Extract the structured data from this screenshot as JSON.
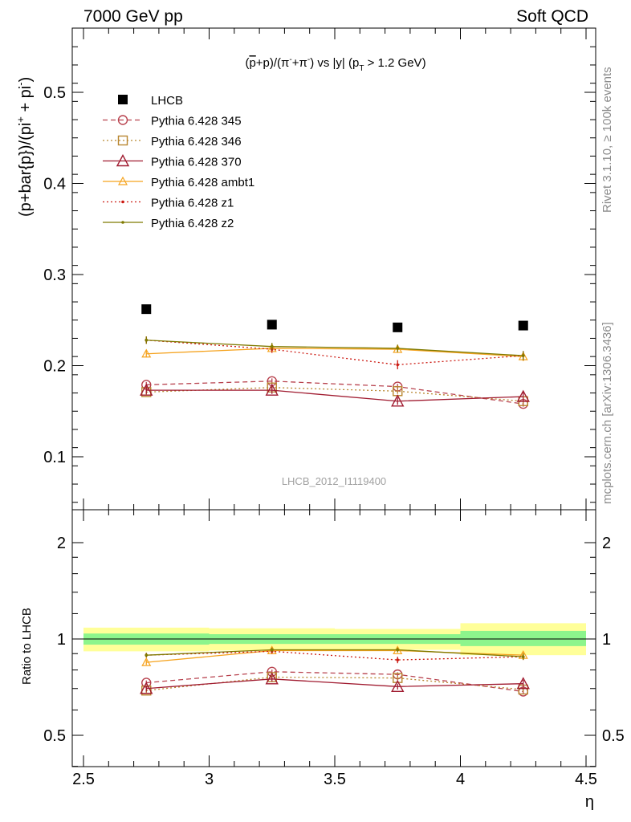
{
  "header": {
    "left": "7000 GeV pp",
    "right": "Soft QCD"
  },
  "side_text": {
    "rivet": "Rivet 3.1.10, ≥ 100k events",
    "mcplots": "mcplots.cern.ch [arXiv:1306.3436]"
  },
  "watermark": "LHCB_2012_I1119400",
  "main_title": {
    "prefix": "(",
    "p_bar": "p",
    "middle": "+p)/(π",
    "sup1": "-",
    "middle2": "+π",
    "sup2": "-",
    "tail": ") vs |y| (p",
    "sub": "T",
    "end": " > 1.2 GeV)"
  },
  "ylabel_top": {
    "base": "(p+bar{p})/(pi",
    "sup1": "+",
    "mid": " + pi",
    "sup2": "-",
    "end": ")"
  },
  "ylabel_bottom": "Ratio to LHCB",
  "xlabel": "η",
  "colors": {
    "data": "#000000",
    "p345": "#b8424e",
    "p346": "#b8862f",
    "p370": "#a01b30",
    "ambt1": "#f5a31f",
    "z1": "#cc1a12",
    "z2": "#7f7a00",
    "band_inner": "#8cf58c",
    "band_outer": "#ffff99"
  },
  "chart_data": [
    {
      "type": "scatter",
      "panel": "main",
      "xlim": [
        2.5,
        4.5
      ],
      "ylim": [
        0.045,
        0.57
      ],
      "x_ticks": [
        2.5,
        3,
        3.5,
        4,
        4.5
      ],
      "x_tick_labels": [
        "2.5",
        "3",
        "3.5",
        "4",
        "4.5"
      ],
      "y_ticks": [
        0.1,
        0.2,
        0.3,
        0.4,
        0.5
      ],
      "y_tick_labels": [
        "0.1",
        "0.2",
        "0.3",
        "0.4",
        "0.5"
      ],
      "x": [
        2.75,
        3.25,
        3.75,
        4.25
      ],
      "legend_position": "top-left",
      "series": [
        {
          "key": "lhcb",
          "name": "LHCB",
          "marker": "square",
          "line": "none",
          "color_key": "data",
          "values": [
            0.262,
            0.245,
            0.242,
            0.244
          ],
          "errors": [
            0.003,
            0.003,
            0.003,
            0.003
          ]
        },
        {
          "key": "p345",
          "name": "Pythia 6.428 345",
          "marker": "circle",
          "line": "dashed",
          "color_key": "p345",
          "values": [
            0.179,
            0.183,
            0.177,
            0.158
          ],
          "errors": [
            0.003,
            0.003,
            0.003,
            0.003
          ]
        },
        {
          "key": "p346",
          "name": "Pythia 6.428 346",
          "marker": "square-open",
          "line": "dotted",
          "color_key": "p346",
          "values": [
            0.171,
            0.176,
            0.172,
            0.161
          ],
          "errors": [
            0.003,
            0.003,
            0.003,
            0.003
          ]
        },
        {
          "key": "p370",
          "name": "Pythia 6.428 370",
          "marker": "triangle",
          "line": "solid",
          "color_key": "p370",
          "values": [
            0.173,
            0.173,
            0.161,
            0.166
          ],
          "errors": [
            0.004,
            0.004,
            0.004,
            0.005
          ]
        },
        {
          "key": "ambt1",
          "name": "Pythia 6.428 ambt1",
          "marker": "triangle-small",
          "line": "solid",
          "color_key": "ambt1",
          "values": [
            0.213,
            0.219,
            0.218,
            0.21
          ],
          "errors": [
            0.004,
            0.004,
            0.004,
            0.005
          ]
        },
        {
          "key": "z1",
          "name": "Pythia 6.428 z1",
          "marker": "dot",
          "line": "dotted",
          "color_key": "z1",
          "values": [
            0.228,
            0.218,
            0.201,
            0.211
          ],
          "errors": [
            0.004,
            0.004,
            0.005,
            0.005
          ]
        },
        {
          "key": "z2",
          "name": "Pythia 6.428 z2",
          "marker": "dot",
          "line": "solid",
          "color_key": "z2",
          "values": [
            0.228,
            0.221,
            0.219,
            0.211
          ],
          "errors": [
            0.004,
            0.004,
            0.004,
            0.005
          ]
        }
      ]
    },
    {
      "type": "scatter",
      "panel": "ratio",
      "xlim": [
        2.5,
        4.5
      ],
      "ylim": [
        0.35,
        2.3
      ],
      "x_ticks": [
        2.5,
        3,
        3.5,
        4,
        4.5
      ],
      "x_tick_labels": [
        "2.5",
        "3",
        "3.5",
        "4",
        "4.5"
      ],
      "y_ticks": [
        0.5,
        1,
        2
      ],
      "y_tick_labels": [
        "0.5",
        "1",
        "2"
      ],
      "bands": [
        {
          "x0": 2.5,
          "x1": 3.0,
          "outer": [
            0.915,
            1.085
          ],
          "inner": [
            0.96,
            1.04
          ]
        },
        {
          "x0": 3.0,
          "x1": 3.5,
          "outer": [
            0.92,
            1.08
          ],
          "inner": [
            0.965,
            1.035
          ]
        },
        {
          "x0": 3.5,
          "x1": 4.0,
          "outer": [
            0.925,
            1.075
          ],
          "inner": [
            0.965,
            1.035
          ]
        },
        {
          "x0": 4.0,
          "x1": 4.5,
          "outer": [
            0.89,
            1.12
          ],
          "inner": [
            0.95,
            1.06
          ]
        }
      ],
      "x": [
        2.75,
        3.25,
        3.75,
        4.25
      ],
      "series": [
        {
          "key": "p345",
          "values": [
            0.73,
            0.79,
            0.775,
            0.685
          ],
          "errors": [
            0.012,
            0.012,
            0.012,
            0.012
          ]
        },
        {
          "key": "p346",
          "values": [
            0.69,
            0.76,
            0.755,
            0.695
          ],
          "errors": [
            0.012,
            0.012,
            0.012,
            0.012
          ]
        },
        {
          "key": "p370",
          "values": [
            0.7,
            0.75,
            0.71,
            0.725
          ],
          "errors": [
            0.015,
            0.015,
            0.015,
            0.02
          ]
        },
        {
          "key": "ambt1",
          "values": [
            0.845,
            0.92,
            0.92,
            0.89
          ],
          "errors": [
            0.015,
            0.015,
            0.015,
            0.02
          ]
        },
        {
          "key": "z1",
          "values": [
            0.89,
            0.915,
            0.86,
            0.88
          ],
          "errors": [
            0.015,
            0.015,
            0.02,
            0.02
          ]
        },
        {
          "key": "z2",
          "values": [
            0.89,
            0.925,
            0.925,
            0.88
          ],
          "errors": [
            0.015,
            0.015,
            0.015,
            0.02
          ]
        }
      ]
    }
  ]
}
